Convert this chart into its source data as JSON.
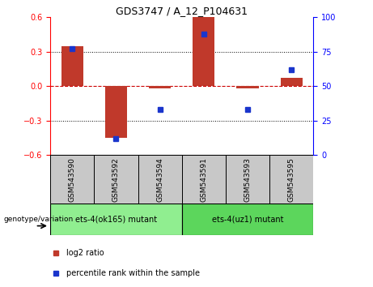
{
  "title": "GDS3747 / A_12_P104631",
  "samples": [
    "GSM543590",
    "GSM543592",
    "GSM543594",
    "GSM543591",
    "GSM543593",
    "GSM543595"
  ],
  "log2_ratios": [
    0.35,
    -0.45,
    -0.02,
    0.6,
    -0.02,
    0.07
  ],
  "percentile_ranks": [
    77,
    12,
    33,
    88,
    33,
    62
  ],
  "group1_label": "ets-4(ok165) mutant",
  "group2_label": "ets-4(uz1) mutant",
  "ylim_left": [
    -0.6,
    0.6
  ],
  "ylim_right": [
    0,
    100
  ],
  "yticks_left": [
    -0.6,
    -0.3,
    0,
    0.3,
    0.6
  ],
  "yticks_right": [
    0,
    25,
    50,
    75,
    100
  ],
  "bar_color": "#C0392B",
  "dot_color": "#1A35CC",
  "zero_line_color": "#CC0000",
  "bg_color": "#FFFFFF",
  "sample_bg": "#C8C8C8",
  "group1_color": "#90EE90",
  "group2_color": "#5CD65C",
  "genotype_label": "genotype/variation",
  "legend_log2": "log2 ratio",
  "legend_pct": "percentile rank within the sample",
  "bar_width": 0.5
}
